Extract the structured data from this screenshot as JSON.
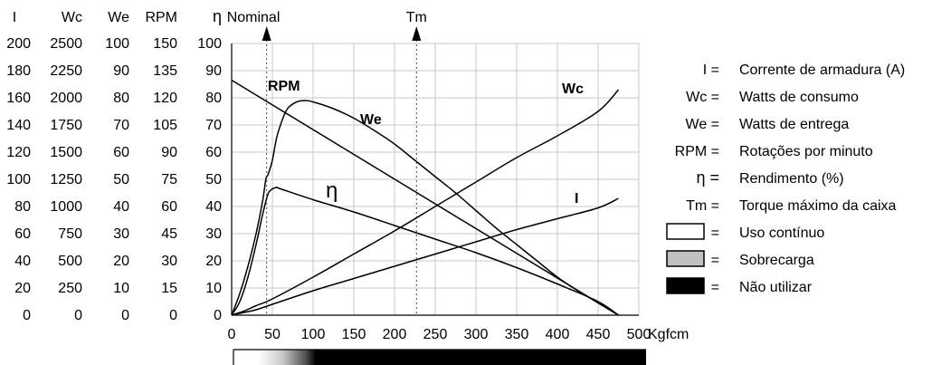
{
  "chart_data": {
    "type": "line",
    "x_unit": "Kgfcm",
    "xlim": [
      0,
      500
    ],
    "x_ticks": [
      "0",
      "50",
      "100",
      "150",
      "200",
      "250",
      "300",
      "350",
      "400",
      "450",
      "500"
    ],
    "grid": true,
    "y_scales": [
      {
        "header": "I",
        "ticks": [
          "200",
          "180",
          "160",
          "140",
          "120",
          "100",
          "80",
          "60",
          "40",
          "20",
          "0"
        ]
      },
      {
        "header": "Wc",
        "ticks": [
          "2500",
          "2250",
          "2000",
          "1750",
          "1500",
          "1250",
          "1000",
          "750",
          "500",
          "250",
          "0"
        ]
      },
      {
        "header": "We",
        "ticks": [
          "100",
          "90",
          "80",
          "70",
          "60",
          "50",
          "40",
          "30",
          "20",
          "10",
          "0"
        ]
      },
      {
        "header": "RPM",
        "ticks": [
          "150",
          "135",
          "120",
          "105",
          "90",
          "75",
          "60",
          "45",
          "30",
          "15",
          "0"
        ]
      },
      {
        "header": "η",
        "ticks": [
          "100",
          "90",
          "80",
          "70",
          "60",
          "50",
          "40",
          "30",
          "20",
          "10",
          "0"
        ]
      }
    ],
    "markers": [
      {
        "label": "Nominal",
        "x": 43
      },
      {
        "label": "Tm",
        "x": 227
      }
    ],
    "series": [
      {
        "name": "RPM",
        "label_pos": "top-left",
        "points": [
          [
            0,
            86.5
          ],
          [
            475,
            0
          ]
        ]
      },
      {
        "name": "Wc",
        "label_pos": "right",
        "points": [
          [
            0,
            0
          ],
          [
            15,
            1.5
          ],
          [
            30,
            3.5
          ],
          [
            50,
            6
          ],
          [
            100,
            14
          ],
          [
            150,
            22.5
          ],
          [
            200,
            31
          ],
          [
            250,
            40
          ],
          [
            300,
            49
          ],
          [
            350,
            58
          ],
          [
            400,
            66
          ],
          [
            450,
            75
          ],
          [
            475,
            83
          ]
        ]
      },
      {
        "name": "I",
        "label_pos": "right",
        "points": [
          [
            0,
            0
          ],
          [
            15,
            1
          ],
          [
            30,
            2
          ],
          [
            50,
            4
          ],
          [
            100,
            9
          ],
          [
            150,
            13.5
          ],
          [
            200,
            18
          ],
          [
            250,
            22.5
          ],
          [
            300,
            27
          ],
          [
            350,
            31.5
          ],
          [
            400,
            35.5
          ],
          [
            450,
            39.5
          ],
          [
            475,
            43
          ]
        ]
      },
      {
        "name": "We",
        "label_pos": "top",
        "points": [
          [
            0,
            0
          ],
          [
            10,
            8
          ],
          [
            20,
            18
          ],
          [
            30,
            30
          ],
          [
            38,
            42
          ],
          [
            42,
            50
          ],
          [
            45,
            52
          ],
          [
            50,
            57
          ],
          [
            55,
            65
          ],
          [
            60,
            70
          ],
          [
            65,
            74
          ],
          [
            70,
            76.5
          ],
          [
            80,
            78.5
          ],
          [
            90,
            79
          ],
          [
            100,
            78.5
          ],
          [
            125,
            76
          ],
          [
            150,
            72.5
          ],
          [
            175,
            68
          ],
          [
            200,
            63
          ],
          [
            225,
            57
          ],
          [
            250,
            51
          ],
          [
            275,
            45
          ],
          [
            300,
            38.5
          ],
          [
            325,
            32
          ],
          [
            350,
            26
          ],
          [
            375,
            20
          ],
          [
            400,
            14
          ],
          [
            425,
            9
          ],
          [
            450,
            4.5
          ],
          [
            475,
            0
          ]
        ]
      },
      {
        "name": "η",
        "label_pos": "middle",
        "points": [
          [
            0,
            0
          ],
          [
            10,
            5
          ],
          [
            20,
            14
          ],
          [
            30,
            26
          ],
          [
            38,
            37
          ],
          [
            44,
            44
          ],
          [
            48,
            46
          ],
          [
            55,
            47
          ],
          [
            60,
            46.5
          ],
          [
            100,
            42.5
          ],
          [
            150,
            38
          ],
          [
            200,
            33
          ],
          [
            250,
            28
          ],
          [
            300,
            23
          ],
          [
            350,
            17.5
          ],
          [
            400,
            11.5
          ],
          [
            450,
            5
          ],
          [
            475,
            0
          ]
        ]
      }
    ],
    "legend": {
      "placement": "right",
      "entries": [
        {
          "key": "I =",
          "text": "Corrente de armadura (A)"
        },
        {
          "key": "Wc =",
          "text": "Watts de consumo"
        },
        {
          "key": "We =",
          "text": "Watts de entrega"
        },
        {
          "key": "RPM =",
          "text": "Rotações por minuto"
        },
        {
          "key": "η =",
          "text": "Rendimento (%)"
        },
        {
          "key": "Tm =",
          "text": "Torque máximo da caixa"
        },
        {
          "key": "=",
          "swatch": "#ffffff",
          "text": "Uso contínuo"
        },
        {
          "key": "=",
          "swatch": "#c0c0c0",
          "text": "Sobrecarga"
        },
        {
          "key": "=",
          "swatch": "#000000",
          "text": "Não utilizar"
        }
      ]
    },
    "usage_bar": [
      {
        "zone": "Uso contínuo",
        "from": 0,
        "to": 40,
        "color": "#ffffff"
      },
      {
        "zone": "Sobrecarga",
        "from": 40,
        "to": 100,
        "color": "#c0c0c0"
      },
      {
        "zone": "Não utilizar",
        "from": 100,
        "to": 500,
        "color": "#000000"
      }
    ]
  }
}
